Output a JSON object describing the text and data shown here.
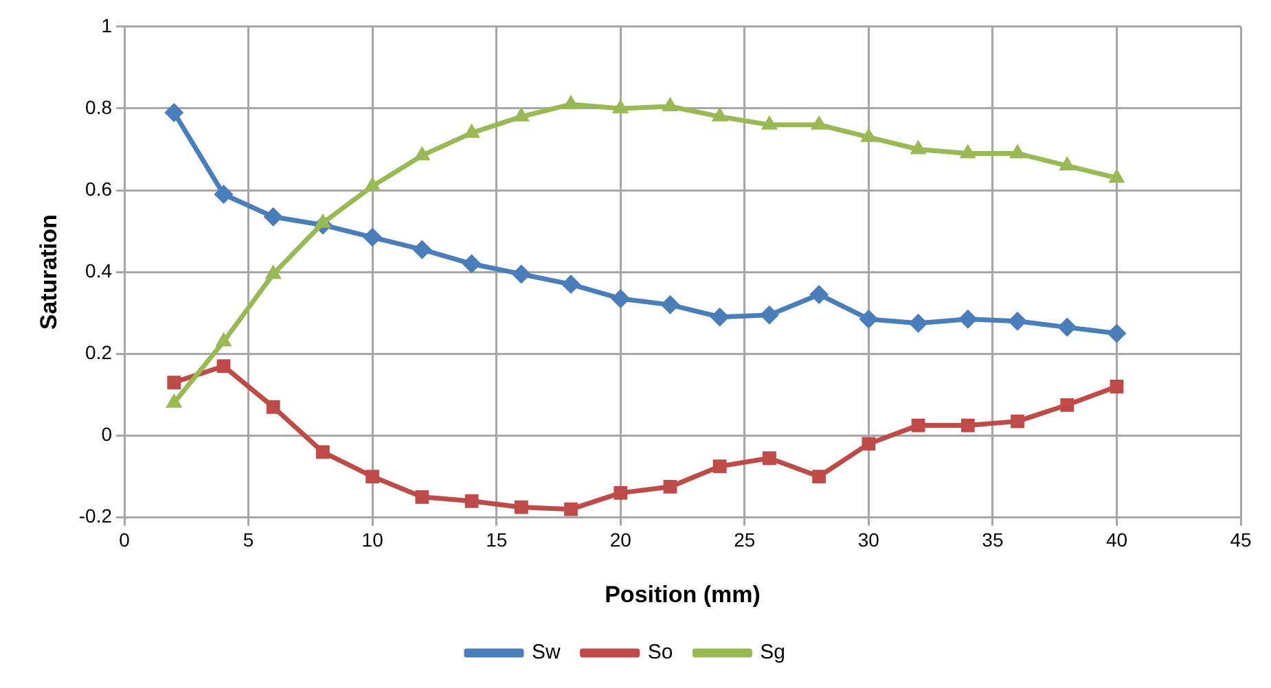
{
  "chart_data": {
    "type": "line",
    "xlabel": "Position (mm)",
    "ylabel": "Saturation",
    "xlim": [
      0,
      45
    ],
    "xticks": [
      0,
      5,
      10,
      15,
      20,
      25,
      30,
      35,
      40,
      45
    ],
    "ylim": [
      -0.2,
      1
    ],
    "yticks": [
      -0.2,
      0,
      0.2,
      0.4,
      0.6,
      0.8,
      1
    ],
    "grid": true,
    "legend": "bottom",
    "line_style": "solid",
    "x": [
      2,
      4,
      6,
      8,
      10,
      12,
      14,
      16,
      18,
      20,
      22,
      24,
      26,
      28,
      30,
      32,
      34,
      36,
      38,
      40
    ],
    "series": [
      {
        "name": "Sw",
        "color": "#4a7ebb",
        "marker": "diamond",
        "values": [
          0.79,
          0.59,
          0.535,
          0.515,
          0.485,
          0.455,
          0.42,
          0.395,
          0.37,
          0.335,
          0.32,
          0.29,
          0.295,
          0.345,
          0.285,
          0.275,
          0.285,
          0.28,
          0.265,
          0.25
        ]
      },
      {
        "name": "So",
        "color": "#be4b48",
        "marker": "square",
        "values": [
          0.13,
          0.17,
          0.07,
          -0.04,
          -0.1,
          -0.15,
          -0.16,
          -0.175,
          -0.18,
          -0.14,
          -0.125,
          -0.075,
          -0.055,
          -0.1,
          -0.02,
          0.025,
          0.025,
          0.035,
          0.075,
          0.12
        ]
      },
      {
        "name": "Sg",
        "color": "#98b954",
        "marker": "triangle",
        "values": [
          0.08,
          0.23,
          0.395,
          0.52,
          0.61,
          0.685,
          0.74,
          0.78,
          0.81,
          0.8,
          0.805,
          0.78,
          0.76,
          0.76,
          0.73,
          0.7,
          0.69,
          0.69,
          0.66,
          0.63
        ]
      }
    ]
  }
}
